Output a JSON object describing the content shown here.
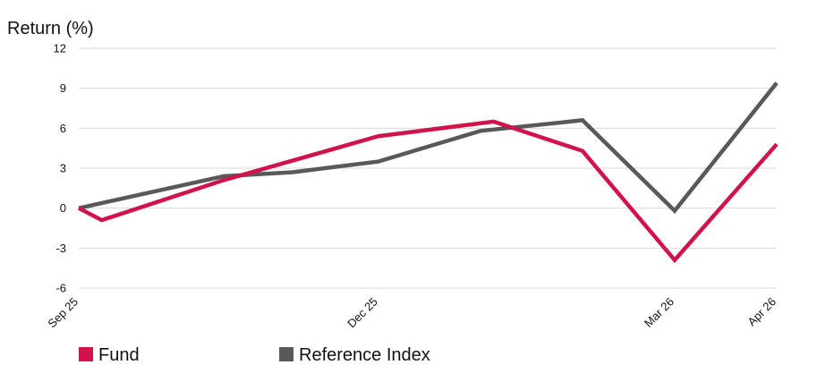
{
  "chart_data": {
    "type": "line",
    "ylabel": "Return (%)",
    "ylim": [
      -6,
      12
    ],
    "yticks": [
      12,
      9,
      6,
      3,
      0,
      -3,
      -6
    ],
    "grid": true,
    "legend_position": "bottom-left",
    "x_tick_labels": [
      "Sep 25",
      "Dec 25",
      "Mar 26",
      "Apr 26"
    ],
    "series": [
      {
        "name": "Fund",
        "color": "#d0134a",
        "points": [
          {
            "x": "2025-09-01",
            "y": 0.0
          },
          {
            "x": "2025-09-08",
            "y": -0.9
          },
          {
            "x": "2025-10-15",
            "y": 2.1
          },
          {
            "x": "2025-12-01",
            "y": 5.4
          },
          {
            "x": "2026-01-05",
            "y": 6.5
          },
          {
            "x": "2026-02-01",
            "y": 4.3
          },
          {
            "x": "2026-03-01",
            "y": -3.9
          },
          {
            "x": "2026-04-01",
            "y": 4.8
          }
        ]
      },
      {
        "name": "Reference Index",
        "color": "#595959",
        "points": [
          {
            "x": "2025-09-01",
            "y": 0.0
          },
          {
            "x": "2025-10-15",
            "y": 2.4
          },
          {
            "x": "2025-11-05",
            "y": 2.7
          },
          {
            "x": "2025-12-01",
            "y": 3.5
          },
          {
            "x": "2026-01-01",
            "y": 5.8
          },
          {
            "x": "2026-02-01",
            "y": 6.6
          },
          {
            "x": "2026-03-01",
            "y": -0.2
          },
          {
            "x": "2026-04-01",
            "y": 9.4
          }
        ]
      }
    ]
  }
}
